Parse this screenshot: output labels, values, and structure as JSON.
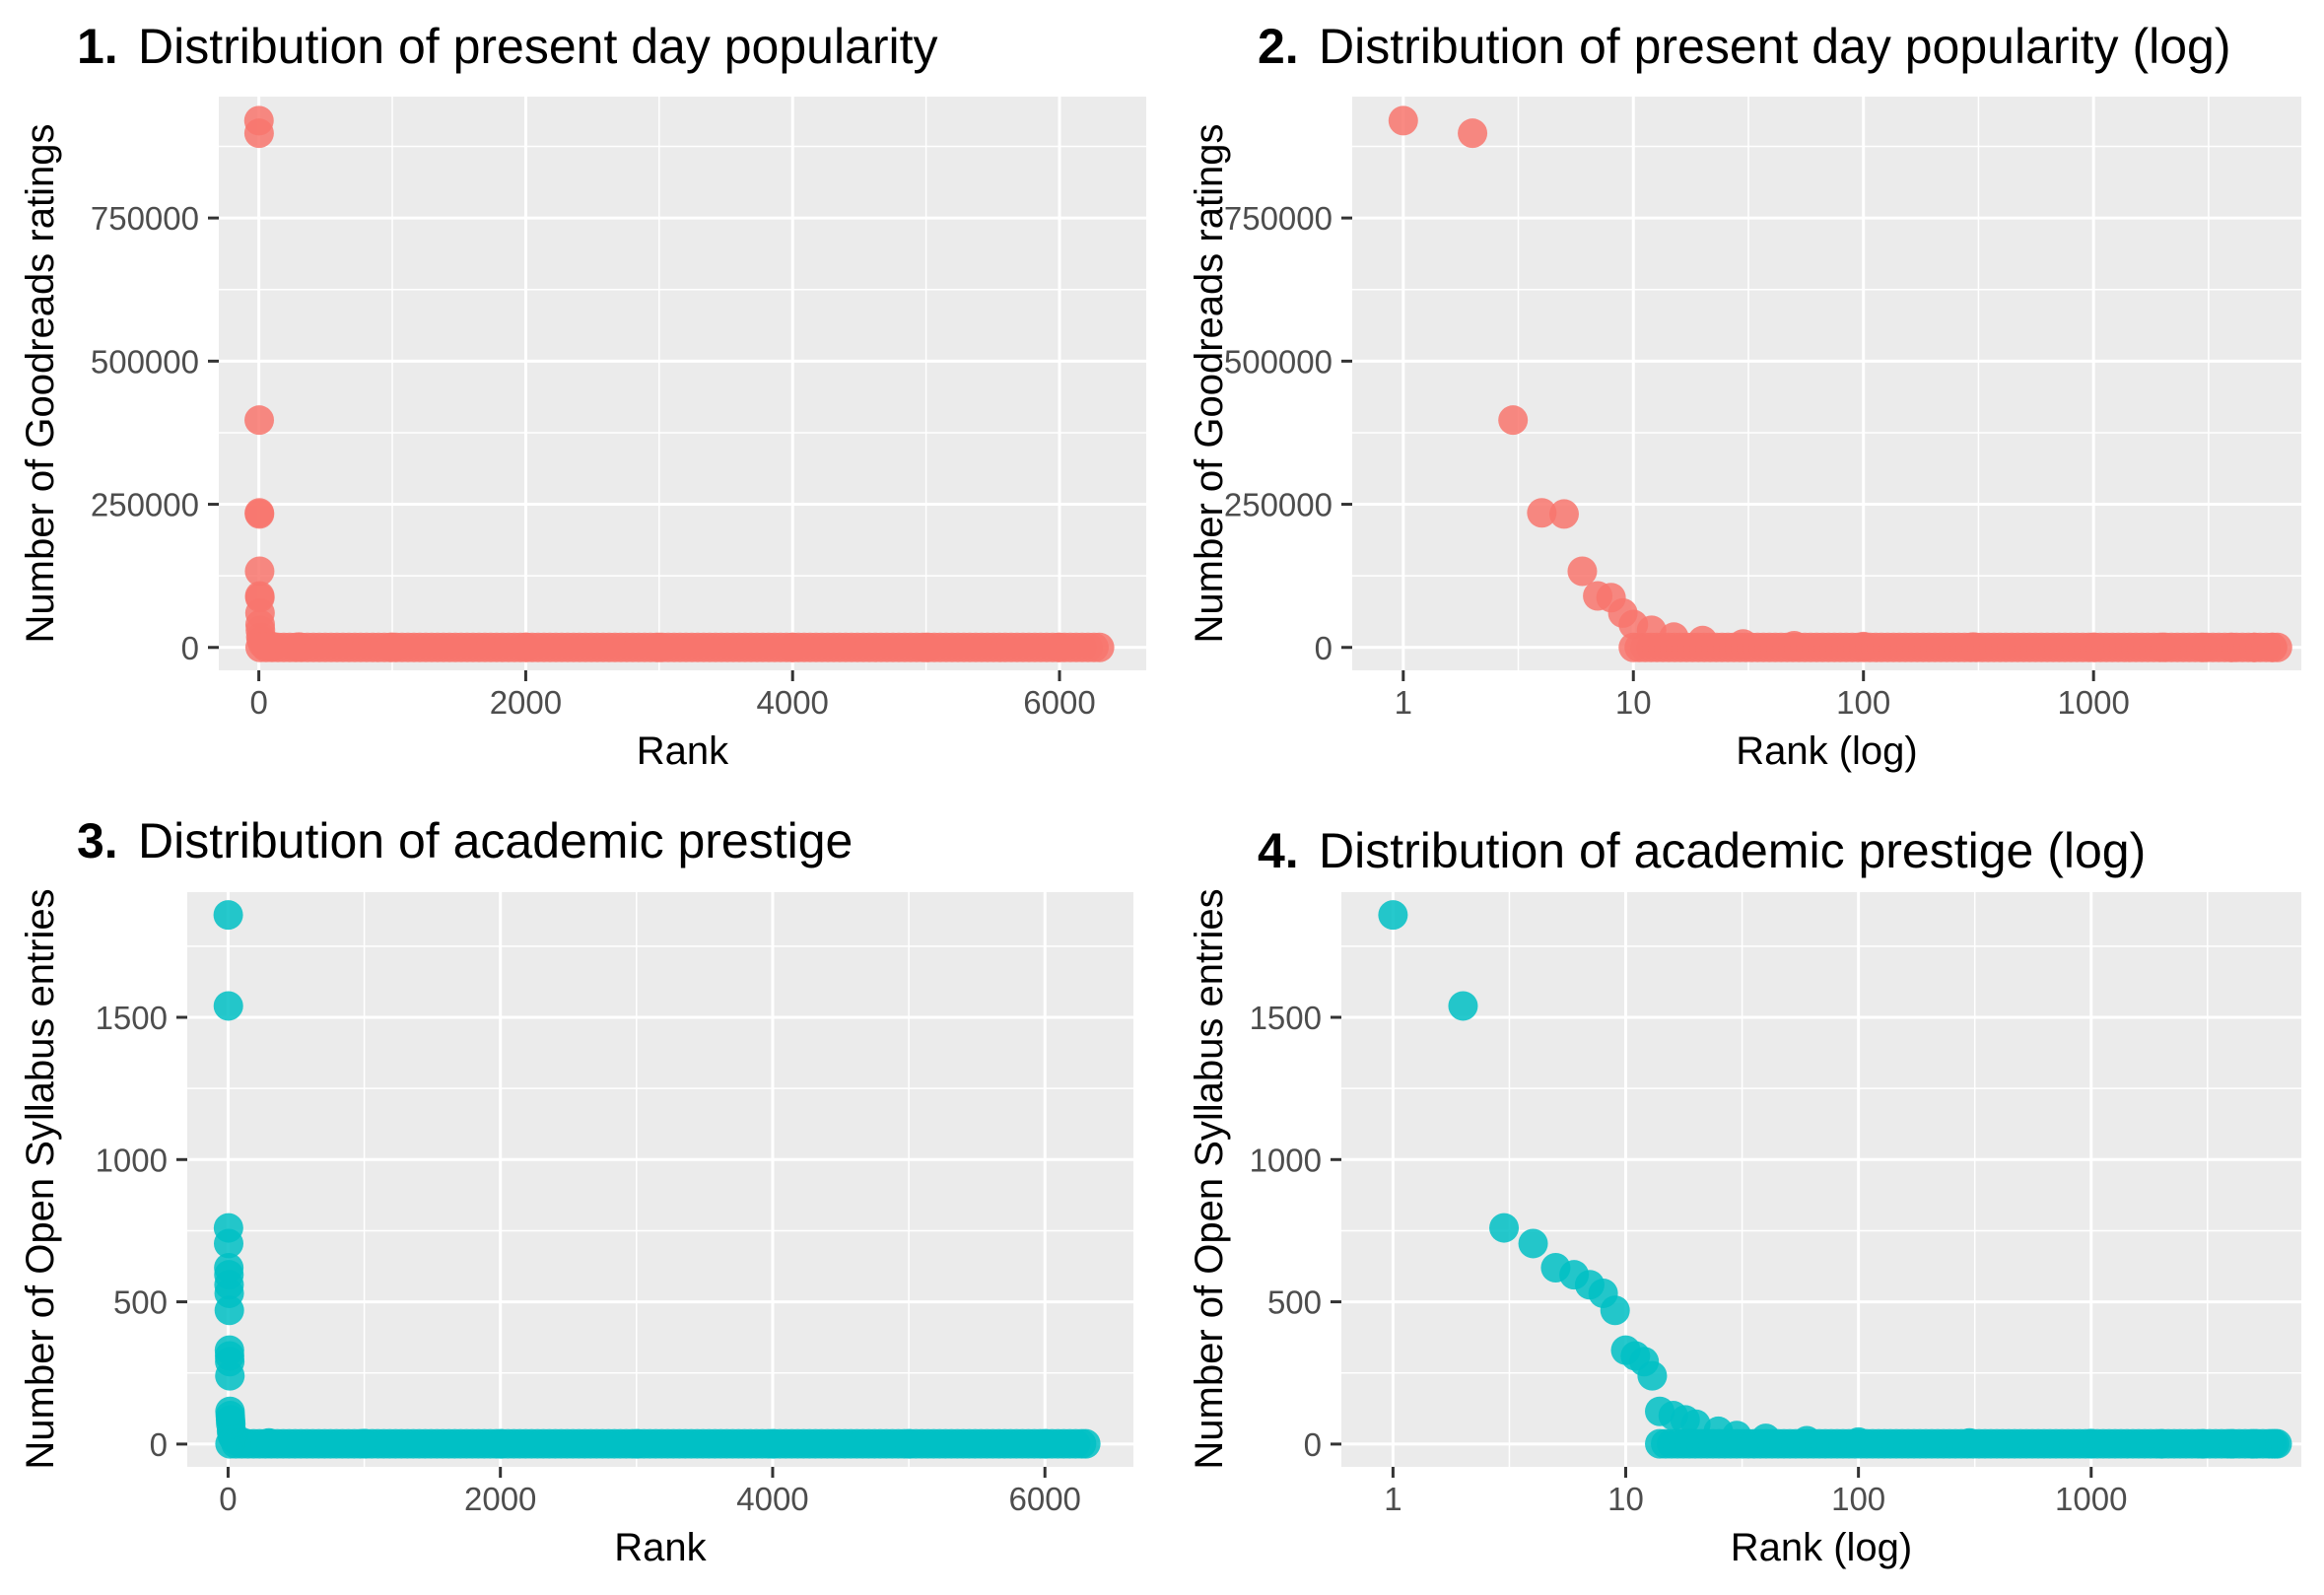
{
  "colors": {
    "panel_background": "#ebebeb",
    "grid": "#ffffff",
    "popularity": "#f8766d",
    "prestige": "#00bfc4",
    "tick_text": "#4d4d4d"
  },
  "chart_data": [
    {
      "type": "scatter",
      "number": "1.",
      "title": "Distribution of present day popularity",
      "xlabel": "Rank",
      "ylabel": "Number of Goodreads ratings",
      "x_scale": "linear",
      "xlim": [
        -300,
        6650
      ],
      "ylim": [
        -40000,
        962000
      ],
      "xticks": [
        0,
        2000,
        4000,
        6000
      ],
      "xtick_labels": [
        "0",
        "2000",
        "4000",
        "6000"
      ],
      "yticks": [
        0,
        250000,
        500000,
        750000
      ],
      "ytick_labels": [
        "0",
        "250000",
        "500000",
        "750000"
      ],
      "grid": true,
      "color": "#f8766d",
      "x": [
        1,
        2,
        3,
        4,
        5,
        6,
        7,
        8,
        9,
        10,
        12,
        15,
        20,
        30,
        50,
        100,
        300,
        1000,
        2000,
        3000,
        4000,
        5000,
        6000,
        6300
      ],
      "y": [
        920000,
        898000,
        397000,
        235000,
        233000,
        133000,
        90000,
        87000,
        60000,
        40000,
        30000,
        18000,
        12000,
        6000,
        3000,
        1500,
        700,
        300,
        150,
        100,
        70,
        50,
        30,
        20
      ]
    },
    {
      "type": "scatter",
      "number": "2.",
      "title": "Distribution of present day popularity (log)",
      "xlabel": "Rank (log)",
      "ylabel": "Number of Goodreads ratings",
      "x_scale": "log10",
      "xlim": [
        0.6,
        8000
      ],
      "ylim": [
        -40000,
        962000
      ],
      "xticks": [
        1,
        10,
        100,
        1000
      ],
      "xtick_labels": [
        "1",
        "10",
        "100",
        "1000"
      ],
      "yticks": [
        0,
        250000,
        500000,
        750000
      ],
      "ytick_labels": [
        "0",
        "250000",
        "500000",
        "750000"
      ],
      "grid": true,
      "color": "#f8766d",
      "x": [
        1,
        2,
        3,
        4,
        5,
        6,
        7,
        8,
        9,
        10,
        12,
        15,
        20,
        30,
        50,
        100,
        300,
        1000,
        2000,
        3000,
        4000,
        5000,
        6000,
        6300
      ],
      "y": [
        920000,
        898000,
        397000,
        235000,
        233000,
        133000,
        90000,
        87000,
        60000,
        40000,
        30000,
        18000,
        12000,
        6000,
        3000,
        1500,
        700,
        300,
        150,
        100,
        70,
        50,
        30,
        20
      ]
    },
    {
      "type": "scatter",
      "number": "3.",
      "title": "Distribution of academic prestige",
      "xlabel": "Rank",
      "ylabel": "Number of Open Syllabus entries",
      "x_scale": "linear",
      "xlim": [
        -300,
        6650
      ],
      "ylim": [
        -80,
        1940
      ],
      "xticks": [
        0,
        2000,
        4000,
        6000
      ],
      "xtick_labels": [
        "0",
        "2000",
        "4000",
        "6000"
      ],
      "yticks": [
        0,
        500,
        1000,
        1500
      ],
      "ytick_labels": [
        "0",
        "500",
        "1000",
        "1500"
      ],
      "grid": true,
      "color": "#00bfc4",
      "x": [
        1,
        2,
        3,
        4,
        5,
        6,
        7,
        8,
        9,
        10,
        11,
        12,
        13,
        14,
        16,
        18,
        20,
        25,
        30,
        40,
        60,
        100,
        300,
        1000,
        2000,
        3000,
        4000,
        5000,
        6000,
        6300
      ],
      "y": [
        1860,
        1540,
        760,
        705,
        620,
        595,
        560,
        530,
        470,
        330,
        310,
        290,
        240,
        115,
        100,
        85,
        70,
        45,
        30,
        20,
        12,
        7,
        4,
        2,
        1,
        1,
        1,
        1,
        1,
        1
      ]
    },
    {
      "type": "scatter",
      "number": "4.",
      "title": "Distribution of academic prestige (log)",
      "xlabel": "Rank (log)",
      "ylabel": "Number of Open Syllabus entries",
      "x_scale": "log10",
      "xlim": [
        0.6,
        8000
      ],
      "ylim": [
        -80,
        1940
      ],
      "xticks": [
        1,
        10,
        100,
        1000
      ],
      "xtick_labels": [
        "1",
        "10",
        "100",
        "1000"
      ],
      "yticks": [
        0,
        500,
        1000,
        1500
      ],
      "ytick_labels": [
        "0",
        "500",
        "1000",
        "1500"
      ],
      "grid": true,
      "color": "#00bfc4",
      "x": [
        1,
        2,
        3,
        4,
        5,
        6,
        7,
        8,
        9,
        10,
        11,
        12,
        13,
        14,
        16,
        18,
        20,
        25,
        30,
        40,
        60,
        100,
        300,
        1000,
        2000,
        3000,
        4000,
        5000,
        6000,
        6300
      ],
      "y": [
        1860,
        1540,
        760,
        705,
        620,
        595,
        560,
        530,
        470,
        330,
        310,
        290,
        240,
        115,
        100,
        85,
        70,
        45,
        30,
        20,
        12,
        7,
        4,
        2,
        1,
        1,
        1,
        1,
        1,
        1
      ]
    }
  ]
}
